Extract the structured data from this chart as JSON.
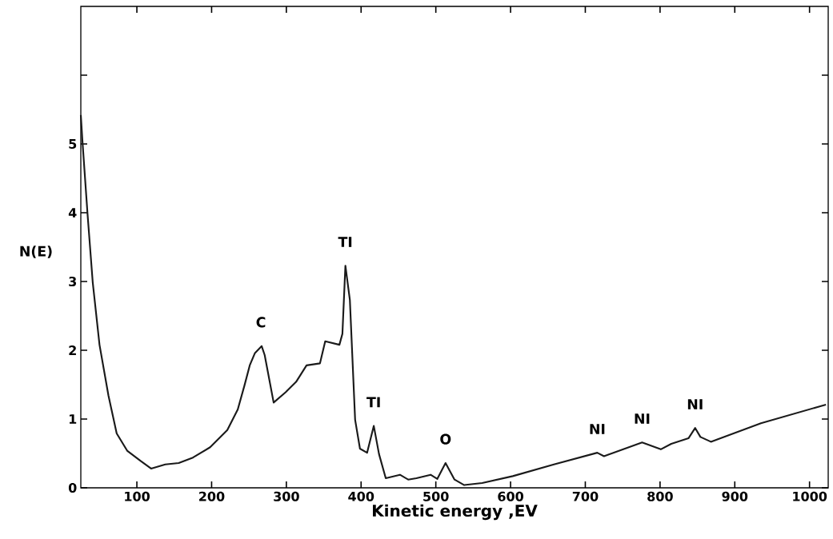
{
  "chart_data": {
    "type": "line",
    "xlabel": "Kinetic energy ,EV",
    "ylabel": "N(E)",
    "color": "#1a1a1a",
    "x": [
      25,
      27,
      34,
      41,
      50,
      62,
      73,
      87,
      105,
      119,
      138,
      156,
      175,
      198,
      221,
      235,
      244,
      251,
      258,
      267,
      271,
      283,
      299,
      313,
      327,
      345,
      352,
      371,
      375,
      379,
      385,
      392,
      398.5,
      408,
      417,
      424,
      433,
      452,
      463,
      474,
      493,
      502,
      513,
      525,
      538,
      562,
      603,
      658,
      716,
      725,
      776,
      801,
      815,
      838,
      847,
      854,
      868,
      935,
      1022
    ],
    "values": [
      5.42,
      5.07,
      3.98,
      2.98,
      2.08,
      1.34,
      0.79,
      0.54,
      0.39,
      0.28,
      0.34,
      0.36,
      0.44,
      0.59,
      0.84,
      1.14,
      1.49,
      1.78,
      1.96,
      2.06,
      1.93,
      1.24,
      1.39,
      1.54,
      1.78,
      1.81,
      2.13,
      2.08,
      2.24,
      3.23,
      2.73,
      0.99,
      0.57,
      0.51,
      0.9,
      0.49,
      0.14,
      0.19,
      0.12,
      0.14,
      0.19,
      0.13,
      0.36,
      0.12,
      0.04,
      0.07,
      0.17,
      0.34,
      0.51,
      0.46,
      0.66,
      0.56,
      0.64,
      0.72,
      0.87,
      0.74,
      0.67,
      0.94,
      1.21
    ],
    "xlim": [
      25,
      1025
    ],
    "ylim": [
      0,
      7
    ],
    "xticks": [
      100,
      200,
      300,
      400,
      500,
      600,
      700,
      800,
      900,
      1000
    ],
    "yticks": [
      0,
      1,
      2,
      3,
      4,
      5,
      {
        "value": 6,
        "label": null
      }
    ],
    "annotations": [
      {
        "text": "C",
        "x": 266,
        "y": 2.06
      },
      {
        "text": "TI",
        "x": 379,
        "y": 3.23
      },
      {
        "text": "TI",
        "x": 417,
        "y": 0.9
      },
      {
        "text": "O",
        "x": 513,
        "y": 0.36
      },
      {
        "text": "NI",
        "x": 716,
        "y": 0.51
      },
      {
        "text": "NI",
        "x": 776,
        "y": 0.66
      },
      {
        "text": "NI",
        "x": 847,
        "y": 0.87
      }
    ]
  }
}
